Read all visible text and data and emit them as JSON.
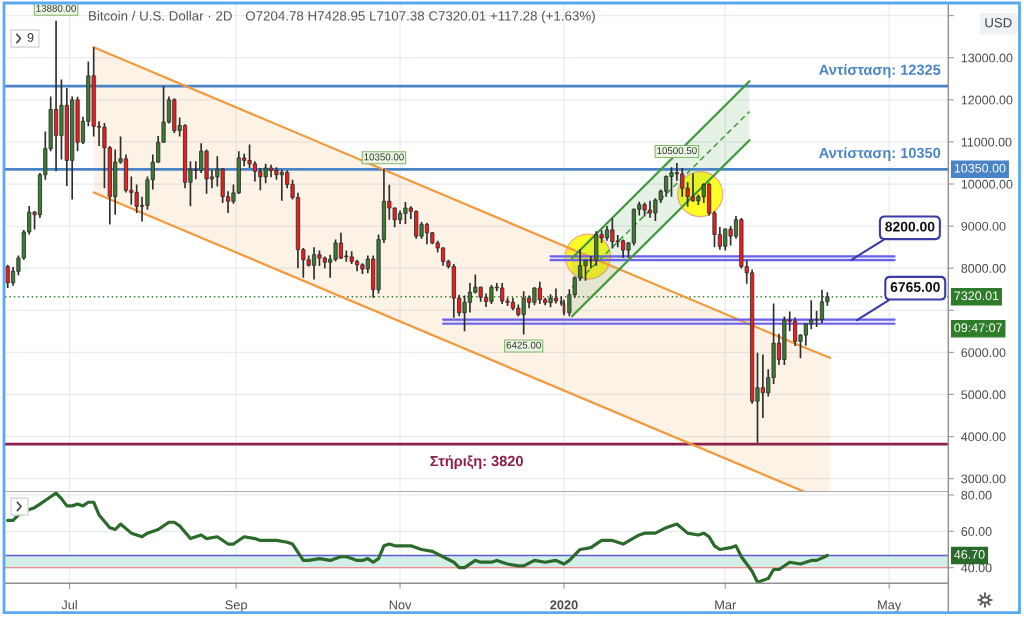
{
  "chart_data": [
    {
      "type": "candlestick",
      "title": "Bitcoin / U.S. Dollar · 2D",
      "subtitle": "O7204.78 H7428.95 L7107.38 C7320.01 +117.28 (+1.63%)",
      "ylabel": "USD",
      "xlim": [
        "2019-06-07",
        "2020-05-23"
      ],
      "xticks": [
        {
          "value": "2019-07-01",
          "label": null
        },
        {
          "value": "2019-09-01",
          "label": null
        },
        {
          "value": "2019-11-01",
          "label": null
        },
        {
          "value": "2020-01-01",
          "label": null
        },
        {
          "value": "2020-03-01",
          "label": null
        },
        {
          "value": "2020-05-01",
          "label": null
        }
      ],
      "ylim": [
        2690,
        14300
      ],
      "yticks": [
        {
          "value": 3000,
          "label": "3000.00"
        },
        {
          "value": 4000,
          "label": "4000.00"
        },
        {
          "value": 5000,
          "label": "5000.00"
        },
        {
          "value": 6000,
          "label": "6000.00"
        },
        {
          "value": 7000,
          "label": null
        },
        {
          "value": 8000,
          "label": "8000.00"
        },
        {
          "value": 9000,
          "label": "9000.00"
        },
        {
          "value": 10000,
          "label": "10000.00"
        },
        {
          "value": 11000,
          "label": "11000.00"
        },
        {
          "value": 12000,
          "label": "12000.00"
        },
        {
          "value": 13000,
          "label": "13000.00"
        },
        {
          "value": 14000,
          "label": null
        }
      ],
      "grid": true,
      "tick_labels": "y",
      "series": [
        {
          "type": "candlestick",
          "x": [
            "2019-06-08",
            "2019-06-10",
            "2019-06-12",
            "2019-06-14",
            "2019-06-16",
            "2019-06-18",
            "2019-06-20",
            "2019-06-22",
            "2019-06-24",
            "2019-06-26",
            "2019-06-28",
            "2019-06-30",
            "2019-07-02",
            "2019-07-04",
            "2019-07-06",
            "2019-07-08",
            "2019-07-10",
            "2019-07-12",
            "2019-07-14",
            "2019-07-16",
            "2019-07-18",
            "2019-07-20",
            "2019-07-22",
            "2019-07-24",
            "2019-07-26",
            "2019-07-28",
            "2019-07-30",
            "2019-08-01",
            "2019-08-03",
            "2019-08-05",
            "2019-08-07",
            "2019-08-09",
            "2019-08-11",
            "2019-08-13",
            "2019-08-15",
            "2019-08-17",
            "2019-08-19",
            "2019-08-21",
            "2019-08-23",
            "2019-08-25",
            "2019-08-27",
            "2019-08-29",
            "2019-08-31",
            "2019-09-02",
            "2019-09-04",
            "2019-09-06",
            "2019-09-08",
            "2019-09-10",
            "2019-09-12",
            "2019-09-14",
            "2019-09-16",
            "2019-09-18",
            "2019-09-20",
            "2019-09-22",
            "2019-09-24",
            "2019-09-26",
            "2019-09-28",
            "2019-09-30",
            "2019-10-02",
            "2019-10-04",
            "2019-10-06",
            "2019-10-08",
            "2019-10-10",
            "2019-10-12",
            "2019-10-14",
            "2019-10-16",
            "2019-10-18",
            "2019-10-20",
            "2019-10-22",
            "2019-10-24",
            "2019-10-26",
            "2019-10-28",
            "2019-10-30",
            "2019-11-01",
            "2019-11-03",
            "2019-11-05",
            "2019-11-07",
            "2019-11-09",
            "2019-11-11",
            "2019-11-13",
            "2019-11-15",
            "2019-11-17",
            "2019-11-19",
            "2019-11-21",
            "2019-11-23",
            "2019-11-25",
            "2019-11-27",
            "2019-11-29",
            "2019-12-01",
            "2019-12-03",
            "2019-12-05",
            "2019-12-07",
            "2019-12-09",
            "2019-12-11",
            "2019-12-13",
            "2019-12-15",
            "2019-12-17",
            "2019-12-19",
            "2019-12-21",
            "2019-12-23",
            "2019-12-25",
            "2019-12-27",
            "2019-12-29",
            "2019-12-31",
            "2020-01-01",
            "2020-01-03",
            "2020-01-05",
            "2020-01-07",
            "2020-01-09",
            "2020-01-11",
            "2020-01-13",
            "2020-01-15",
            "2020-01-17",
            "2020-01-19",
            "2020-01-21",
            "2020-01-23",
            "2020-01-25",
            "2020-01-27",
            "2020-01-29",
            "2020-01-31",
            "2020-02-02",
            "2020-02-04",
            "2020-02-06",
            "2020-02-08",
            "2020-02-10",
            "2020-02-12",
            "2020-02-14",
            "2020-02-16",
            "2020-02-18",
            "2020-02-20",
            "2020-02-22",
            "2020-02-24",
            "2020-02-26",
            "2020-02-28",
            "2020-03-01",
            "2020-03-03",
            "2020-03-05",
            "2020-03-07",
            "2020-03-09",
            "2020-03-11",
            "2020-03-13",
            "2020-03-15",
            "2020-03-17",
            "2020-03-19",
            "2020-03-21",
            "2020-03-23",
            "2020-03-25",
            "2020-03-27",
            "2020-03-29",
            "2020-03-31",
            "2020-04-02",
            "2020-04-04",
            "2020-04-06",
            "2020-04-08"
          ],
          "ohlc": [
            [
              8040,
              8080,
              7530,
              7650
            ],
            [
              7650,
              8030,
              7580,
              7925
            ],
            [
              7925,
              8300,
              7830,
              8240
            ],
            [
              8240,
              8910,
              8200,
              8860
            ],
            [
              8860,
              9480,
              8800,
              9330
            ],
            [
              9330,
              9360,
              8920,
              9270
            ],
            [
              9270,
              10260,
              9190,
              10220
            ],
            [
              10220,
              11250,
              10100,
              10840
            ],
            [
              10840,
              12080,
              10780,
              11770
            ],
            [
              11770,
              13880,
              10300,
              11150
            ],
            [
              11150,
              12480,
              10580,
              11870
            ],
            [
              11870,
              12280,
              9950,
              10560
            ],
            [
              10560,
              12080,
              9630,
              12000
            ],
            [
              12000,
              12070,
              10780,
              10990
            ],
            [
              10990,
              11600,
              10950,
              11490
            ],
            [
              11490,
              12910,
              11370,
              12570
            ],
            [
              12570,
              13250,
              11130,
              11370
            ],
            [
              11370,
              11490,
              10900,
              11350
            ],
            [
              11350,
              11450,
              9900,
              10860
            ],
            [
              10860,
              10900,
              9040,
              9700
            ],
            [
              9700,
              10820,
              9270,
              10520
            ],
            [
              10520,
              11130,
              10480,
              10600
            ],
            [
              10600,
              10700,
              9800,
              9850
            ],
            [
              9850,
              10180,
              9510,
              9800
            ],
            [
              9800,
              9990,
              9310,
              9470
            ],
            [
              9470,
              9700,
              9110,
              9490
            ],
            [
              9490,
              10180,
              9390,
              10100
            ],
            [
              10100,
              10700,
              9870,
              10520
            ],
            [
              10520,
              11140,
              10500,
              10990
            ],
            [
              10990,
              12330,
              10980,
              11470
            ],
            [
              11470,
              12080,
              11440,
              12000
            ],
            [
              12000,
              12040,
              11210,
              11270
            ],
            [
              11270,
              11580,
              11130,
              11390
            ],
            [
              11390,
              11420,
              9900,
              10040
            ],
            [
              10040,
              10540,
              9470,
              10350
            ],
            [
              10350,
              10540,
              10110,
              10320
            ],
            [
              10320,
              10970,
              10260,
              10780
            ],
            [
              10780,
              10820,
              9770,
              10120
            ],
            [
              10120,
              10340,
              9900,
              10170
            ],
            [
              10170,
              10660,
              9940,
              10350
            ],
            [
              10350,
              10380,
              9550,
              9700
            ],
            [
              9700,
              9830,
              9310,
              9590
            ],
            [
              9590,
              9990,
              9530,
              9790
            ],
            [
              9790,
              10780,
              9760,
              10620
            ],
            [
              10620,
              10720,
              10420,
              10560
            ],
            [
              10560,
              10940,
              10380,
              10480
            ],
            [
              10480,
              10540,
              10060,
              10300
            ],
            [
              10300,
              10380,
              9850,
              10170
            ],
            [
              10170,
              10480,
              10020,
              10380
            ],
            [
              10380,
              10460,
              10160,
              10320
            ],
            [
              10320,
              10400,
              10100,
              10220
            ],
            [
              10220,
              10340,
              9600,
              10280
            ],
            [
              10280,
              10320,
              9900,
              9990
            ],
            [
              9990,
              10100,
              9630,
              9680
            ],
            [
              9680,
              9790,
              8000,
              8440
            ],
            [
              8440,
              8480,
              7770,
              8200
            ],
            [
              8200,
              8300,
              8040,
              8070
            ],
            [
              8070,
              8500,
              7730,
              8320
            ],
            [
              8320,
              8420,
              8050,
              8240
            ],
            [
              8240,
              8280,
              8000,
              8140
            ],
            [
              8140,
              8320,
              7770,
              8210
            ],
            [
              8210,
              8680,
              8160,
              8600
            ],
            [
              8600,
              8840,
              8220,
              8240
            ],
            [
              8290,
              8420,
              8150,
              8270
            ],
            [
              8270,
              8400,
              8100,
              8160
            ],
            [
              8160,
              8200,
              7930,
              8080
            ],
            [
              8080,
              8120,
              7860,
              7980
            ],
            [
              7980,
              8300,
              7880,
              8220
            ],
            [
              8220,
              8300,
              7300,
              7490
            ],
            [
              7490,
              8800,
              7400,
              8680
            ],
            [
              8680,
              10350,
              8600,
              9590
            ],
            [
              9590,
              9980,
              9150,
              9430
            ],
            [
              9430,
              9440,
              8970,
              9150
            ],
            [
              9150,
              9370,
              9050,
              9300
            ],
            [
              9300,
              9570,
              9050,
              9430
            ],
            [
              9430,
              9470,
              9170,
              9350
            ],
            [
              9350,
              9370,
              8700,
              8760
            ],
            [
              8760,
              9100,
              8700,
              9040
            ],
            [
              9040,
              9080,
              8570,
              8840
            ],
            [
              8840,
              8860,
              8570,
              8600
            ],
            [
              8600,
              8650,
              8370,
              8480
            ],
            [
              8480,
              8500,
              8060,
              8160
            ],
            [
              8160,
              8200,
              7990,
              8040
            ],
            [
              8040,
              8100,
              6820,
              7290
            ],
            [
              7290,
              7370,
              6860,
              6940
            ],
            [
              6940,
              7350,
              6500,
              7190
            ],
            [
              7190,
              7650,
              6950,
              7430
            ],
            [
              7430,
              7850,
              7400,
              7550
            ],
            [
              7550,
              7560,
              7200,
              7310
            ],
            [
              7310,
              7400,
              7080,
              7210
            ],
            [
              7210,
              7600,
              7150,
              7550
            ],
            [
              7550,
              7650,
              7450,
              7530
            ],
            [
              7530,
              7650,
              7150,
              7220
            ],
            [
              7220,
              7300,
              7100,
              7190
            ],
            [
              7190,
              7300,
              7000,
              7050
            ],
            [
              7050,
              7140,
              6850,
              6900
            ],
            [
              6900,
              7450,
              6425,
              7290
            ],
            [
              7290,
              7350,
              7050,
              7190
            ],
            [
              7190,
              7550,
              7120,
              7530
            ],
            [
              7530,
              7680,
              7150,
              7250
            ],
            [
              7250,
              7300,
              7120,
              7180
            ],
            [
              7180,
              7380,
              7070,
              7290
            ],
            [
              7290,
              7520,
              7160,
              7220
            ],
            [
              7220,
              7330,
              7110,
              7160
            ],
            [
              7160,
              7250,
              6880,
              6940
            ],
            [
              6940,
              7500,
              6860,
              7370
            ],
            [
              7370,
              7800,
              7300,
              7770
            ],
            [
              7770,
              8450,
              7700,
              8060
            ],
            [
              8060,
              8200,
              7700,
              8190
            ],
            [
              8190,
              8290,
              7990,
              8180
            ],
            [
              8180,
              8880,
              8060,
              8800
            ],
            [
              8800,
              8900,
              8600,
              8720
            ],
            [
              8720,
              9000,
              8650,
              8910
            ],
            [
              8910,
              9180,
              8470,
              8630
            ],
            [
              8630,
              8790,
              8500,
              8650
            ],
            [
              8650,
              8680,
              8250,
              8430
            ],
            [
              8430,
              8620,
              8250,
              8600
            ],
            [
              8600,
              9420,
              8540,
              9400
            ],
            [
              9400,
              9580,
              9250,
              9510
            ],
            [
              9510,
              9560,
              9230,
              9380
            ],
            [
              9380,
              9600,
              9200,
              9310
            ],
            [
              9310,
              9660,
              9120,
              9620
            ],
            [
              9620,
              9870,
              9550,
              9830
            ],
            [
              9830,
              10200,
              9700,
              10180
            ],
            [
              10180,
              10400,
              9700,
              10270
            ],
            [
              10270,
              10500.5,
              10080,
              10240
            ],
            [
              10240,
              10380,
              9700,
              9900
            ],
            [
              9900,
              10040,
              9460,
              9700
            ],
            [
              9700,
              10250,
              9580,
              9600
            ],
            [
              9600,
              9750,
              9500,
              9700
            ],
            [
              9700,
              10020,
              9550,
              9990
            ],
            [
              9990,
              10030,
              9250,
              9310
            ],
            [
              9310,
              9360,
              8500,
              8800
            ],
            [
              8800,
              8980,
              8440,
              8520
            ],
            [
              8520,
              8940,
              8420,
              8930
            ],
            [
              8930,
              9000,
              8540,
              8760
            ],
            [
              8760,
              9240,
              8700,
              9150
            ],
            [
              9150,
              9190,
              7990,
              8040
            ],
            [
              8040,
              8180,
              7630,
              7890
            ],
            [
              7890,
              7970,
              4780,
              4840
            ],
            [
              4840,
              5990,
              3850,
              5160
            ],
            [
              5160,
              5950,
              4440,
              5040
            ],
            [
              5040,
              5600,
              4950,
              5400
            ],
            [
              5400,
              7160,
              5250,
              6220
            ],
            [
              6220,
              6440,
              5700,
              5830
            ],
            [
              5830,
              6850,
              5700,
              6770
            ],
            [
              6770,
              6970,
              6500,
              6740
            ],
            [
              6740,
              6830,
              6150,
              6260
            ],
            [
              6260,
              6430,
              5860,
              6410
            ],
            [
              6410,
              6690,
              6160,
              6680
            ],
            [
              6680,
              7240,
              6550,
              6770
            ],
            [
              6770,
              6990,
              6600,
              6780
            ],
            [
              6780,
              7490,
              6700,
              7200
            ],
            [
              7204.78,
              7428.95,
              7107.38,
              7320.01
            ]
          ],
          "colors": [
            "#f21c1c",
            "#3d7b34",
            "#3d7b34",
            "#3d7b34",
            "#3d7b34",
            "#f21c1c",
            "#3d7b34",
            "#3d7b34",
            "#3d7b34",
            "#f21c1c",
            "#3d7b34",
            "#f21c1c",
            "#3d7b34",
            "#f21c1c",
            "#3d7b34",
            "#3d7b34",
            "#f21c1c",
            "#f21c1c",
            "#f21c1c",
            "#f21c1c",
            "#3d7b34",
            "#3d7b34",
            "#f21c1c",
            "#f21c1c",
            "#f21c1c",
            "#3d7b34",
            "#3d7b34",
            "#3d7b34",
            "#3d7b34",
            "#3d7b34",
            "#3d7b34",
            "#f21c1c",
            "#3d7b34",
            "#f21c1c",
            "#3d7b34",
            "#f21c1c",
            "#3d7b34",
            "#f21c1c",
            "#3d7b34",
            "#3d7b34",
            "#f21c1c",
            "#f21c1c",
            "#3d7b34",
            "#3d7b34",
            "#f21c1c",
            "#f21c1c",
            "#f21c1c",
            "#f21c1c",
            "#3d7b34",
            "#f21c1c",
            "#f21c1c",
            "#3d7b34",
            "#f21c1c",
            "#f21c1c",
            "#f21c1c",
            "#f21c1c",
            "#f21c1c",
            "#3d7b34",
            "#f21c1c",
            "#f21c1c",
            "#3d7b34",
            "#3d7b34",
            "#f21c1c",
            "#f21c1c",
            "#f21c1c",
            "#f21c1c",
            "#f21c1c",
            "#3d7b34",
            "#f21c1c",
            "#3d7b34",
            "#3d7b34",
            "#f21c1c",
            "#f21c1c",
            "#3d7b34",
            "#3d7b34",
            "#f21c1c",
            "#f21c1c",
            "#3d7b34",
            "#f21c1c",
            "#f21c1c",
            "#f21c1c",
            "#f21c1c",
            "#f21c1c",
            "#f21c1c",
            "#f21c1c",
            "#3d7b34",
            "#3d7b34",
            "#3d7b34",
            "#f21c1c",
            "#f21c1c",
            "#3d7b34",
            "#f21c1c",
            "#f21c1c",
            "#f21c1c",
            "#f21c1c",
            "#f21c1c",
            "#3d7b34",
            "#f21c1c",
            "#3d7b34",
            "#f21c1c",
            "#f21c1c",
            "#3d7b34",
            "#f21c1c",
            "#f21c1c",
            "#f21c1c",
            "#3d7b34",
            "#3d7b34",
            "#3d7b34",
            "#3d7b34",
            "#f21c1c",
            "#3d7b34",
            "#f21c1c",
            "#3d7b34",
            "#f21c1c",
            "#3d7b34",
            "#f21c1c",
            "#3d7b34",
            "#3d7b34",
            "#3d7b34",
            "#f21c1c",
            "#f21c1c",
            "#3d7b34",
            "#3d7b34",
            "#3d7b34",
            "#3d7b34",
            "#f21c1c",
            "#f21c1c",
            "#f21c1c",
            "#f21c1c",
            "#3d7b34",
            "#3d7b34",
            "#f21c1c",
            "#f21c1c",
            "#f21c1c",
            "#3d7b34",
            "#f21c1c",
            "#3d7b34",
            "#f21c1c",
            "#f21c1c",
            "#f21c1c",
            "#3d7b34",
            "#f21c1c",
            "#3d7b34",
            "#3d7b34",
            "#f21c1c",
            "#3d7b34",
            "#f21c1c",
            "#f21c1c",
            "#3d7b34",
            "#3d7b34",
            "#3d7b34",
            "#3d7b34",
            "#3d7b34",
            "#3d7b34"
          ]
        },
        {
          "type": "line",
          "x": [
            "2019-07-10",
            "2020-03-30",
            "2020-04-09"
          ],
          "values": [
            13250,
            6130,
            5870
          ],
          "lower": [
            9800,
            2700,
            2690
          ],
          "upper": [
            13250,
            6130,
            5870
          ],
          "color": "#f39a3c"
        },
        {
          "type": "line",
          "x": [
            "2019-07-10",
            "2020-03-30"
          ],
          "values": [
            9800,
            2700
          ],
          "color": "#f39a3c"
        },
        {
          "type": "line",
          "x": [
            "2019-12-27",
            "2020-05-03"
          ],
          "values": [
            8280,
            8280
          ],
          "lower": [
            8190,
            8190
          ],
          "upper": [
            8280,
            8280
          ],
          "color": "#6a62e8"
        },
        {
          "type": "line",
          "x": [
            "2019-12-27",
            "2020-05-03"
          ],
          "values": [
            8190,
            8190
          ],
          "color": "#6a62e8"
        },
        {
          "type": "line",
          "x": [
            "2019-11-17",
            "2020-05-03"
          ],
          "values": [
            6780,
            6780
          ],
          "lower": [
            6680,
            6680
          ],
          "upper": [
            6780,
            6780
          ],
          "color": "#6a62e8"
        },
        {
          "type": "line",
          "x": [
            "2019-11-17",
            "2020-05-03"
          ],
          "values": [
            6680,
            6680
          ],
          "color": "#6a62e8"
        },
        {
          "type": "line",
          "x": [
            "2020-01-04",
            "2020-03-10"
          ],
          "values": [
            7550,
            11720
          ],
          "lower": [
            6860,
            11040
          ],
          "upper": [
            8240,
            12440
          ],
          "color": "#3f9a3a",
          "line_style": "dashed"
        },
        {
          "type": "line",
          "x": [
            "2020-01-04",
            "2020-03-10"
          ],
          "values": [
            8240,
            12440
          ],
          "color": "#3f9a3a"
        },
        {
          "type": "line",
          "x": [
            "2020-01-04",
            "2020-03-10"
          ],
          "values": [
            6860,
            11040
          ],
          "color": "#3f9a3a"
        }
      ],
      "ref_lines": [
        {
          "axis": "y",
          "value": 12325,
          "label": "Αντίσταση: 12325",
          "color": "#4a84c6"
        },
        {
          "axis": "y",
          "value": 10350,
          "label": "Αντίσταση: 10350",
          "color": "#4a84c6"
        },
        {
          "axis": "y",
          "value": 3820,
          "label": "Στήριξη: 3820",
          "color": "#8c1f4c"
        },
        {
          "axis": "y",
          "value": 7320.01,
          "color": "#2f7d2a",
          "line_style": "dotted"
        }
      ],
      "annotations": [
        {
          "text": "13880.00",
          "x": "2019-06-26",
          "y": 13880
        },
        {
          "text": "10350.00",
          "x": "2019-10-26",
          "y": 10350
        },
        {
          "text": "10500.50",
          "x": "2020-02-12",
          "y": 10500.5
        },
        {
          "text": "6425.00",
          "x": "2019-12-17",
          "y": 6425
        },
        {
          "text": "8200.00",
          "x": "2020-04-17",
          "y": 8200
        },
        {
          "text": "6765.00",
          "x": "2020-04-19",
          "y": 6765
        },
        {
          "text": "10350.00",
          "x": "2020-05-23",
          "y": 10350
        },
        {
          "text": "7320.01",
          "x": "2020-05-23",
          "y": 7320.01
        },
        "9",
        "09:47:07"
      ]
    },
    {
      "type": "line",
      "color": "#2b6a2b",
      "x": [
        "2019-06-08",
        "2019-06-10",
        "2019-06-12",
        "2019-06-16",
        "2019-06-18",
        "2019-06-20",
        "2019-06-24",
        "2019-06-26",
        "2019-06-28",
        "2019-06-30",
        "2019-07-02",
        "2019-07-04",
        "2019-07-06",
        "2019-07-08",
        "2019-07-10",
        "2019-07-12",
        "2019-07-16",
        "2019-07-18",
        "2019-07-20",
        "2019-07-24",
        "2019-07-26",
        "2019-07-28",
        "2019-07-30",
        "2019-08-03",
        "2019-08-07",
        "2019-08-09",
        "2019-08-11",
        "2019-08-15",
        "2019-08-19",
        "2019-08-21",
        "2019-08-25",
        "2019-08-29",
        "2019-08-31",
        "2019-09-04",
        "2019-09-08",
        "2019-09-10",
        "2019-09-14",
        "2019-09-16",
        "2019-09-20",
        "2019-09-22",
        "2019-09-26",
        "2019-09-28",
        "2019-10-02",
        "2019-10-06",
        "2019-10-08",
        "2019-10-10",
        "2019-10-12",
        "2019-10-14",
        "2019-10-16",
        "2019-10-18",
        "2019-10-20",
        "2019-10-22",
        "2019-10-24",
        "2019-10-26",
        "2019-10-28",
        "2019-10-30",
        "2019-11-01",
        "2019-11-05",
        "2019-11-09",
        "2019-11-13",
        "2019-11-17",
        "2019-11-21",
        "2019-11-23",
        "2019-11-25",
        "2019-11-29",
        "2019-12-01",
        "2019-12-05",
        "2019-12-07",
        "2019-12-11",
        "2019-12-15",
        "2019-12-17",
        "2019-12-21",
        "2019-12-25",
        "2019-12-29",
        "2020-01-01",
        "2020-01-03",
        "2020-01-07",
        "2020-01-11",
        "2020-01-15",
        "2020-01-19",
        "2020-01-23",
        "2020-01-29",
        "2020-01-31",
        "2020-02-04",
        "2020-02-08",
        "2020-02-12",
        "2020-02-16",
        "2020-02-20",
        "2020-02-22",
        "2020-02-24",
        "2020-02-26",
        "2020-02-28",
        "2020-03-03",
        "2020-03-05",
        "2020-03-07",
        "2020-03-11",
        "2020-03-13",
        "2020-03-17",
        "2020-03-19",
        "2020-03-21",
        "2020-03-25",
        "2020-03-29",
        "2020-04-02",
        "2020-04-04",
        "2020-04-08"
      ],
      "values": [
        66,
        66,
        69,
        72,
        73,
        75,
        79,
        81,
        78,
        74,
        74,
        75,
        74,
        76,
        76,
        69,
        62,
        61,
        64,
        59,
        58,
        57,
        59,
        61,
        65,
        65,
        63,
        56,
        58,
        56,
        57,
        53,
        53,
        57,
        56,
        55,
        55,
        55,
        54,
        53,
        44,
        44,
        45,
        44,
        45,
        46,
        46,
        45,
        44,
        44,
        45,
        43,
        45,
        52,
        53,
        52,
        52,
        52,
        50,
        49,
        46,
        43,
        40,
        40,
        44,
        43,
        43,
        44,
        42,
        41,
        41,
        44,
        43,
        44,
        42,
        44,
        50,
        51,
        55,
        55,
        53,
        58,
        59,
        59,
        62,
        64,
        59,
        58,
        59,
        57,
        52,
        50,
        51,
        52,
        46,
        38,
        32,
        34,
        39,
        39,
        43,
        42,
        44,
        44,
        46.7
      ],
      "xlim": [
        "2019-06-07",
        "2020-05-23"
      ],
      "xticks": [
        {
          "value": "2019-07-01",
          "label": "Jul"
        },
        {
          "value": "2019-09-01",
          "label": "Sep"
        },
        {
          "value": "2019-11-01",
          "label": "Nov"
        },
        {
          "value": "2020-01-01",
          "label": "2020"
        },
        {
          "value": "2020-03-01",
          "label": "Mar"
        },
        {
          "value": "2020-05-01",
          "label": "May"
        }
      ],
      "ylim": [
        31.4,
        81.8
      ],
      "yticks": [
        {
          "value": 40,
          "label": "40.00"
        },
        {
          "value": 60,
          "label": "60.00"
        },
        {
          "value": 80,
          "label": "80.00"
        }
      ],
      "grid": true,
      "bands": [
        {
          "axis": "y",
          "from": 40,
          "to": 46.7,
          "color": "#d3ede7"
        }
      ],
      "ref_lines": [
        {
          "axis": "y",
          "value": 46.7,
          "color": "#5c5cd6"
        },
        {
          "axis": "y",
          "value": 40,
          "color": "#f08c8c"
        }
      ],
      "annotations": [
        {
          "text": "46.70",
          "x": "2020-05-23",
          "y": 46.7
        }
      ]
    }
  ]
}
